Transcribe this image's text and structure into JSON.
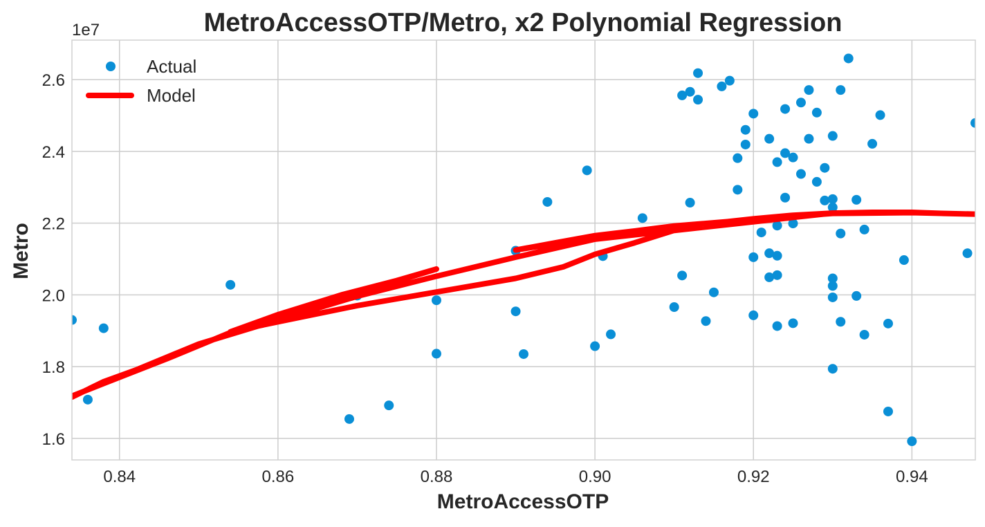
{
  "colors": {
    "actual": "#0a8fd6",
    "model": "#ff0000",
    "grid": "#cccccc",
    "spine": "#d0d0d0",
    "text": "#262626"
  },
  "chart_data": {
    "type": "scatter",
    "title": "MetroAccessOTP/Metro, x2 Polynomial Regression",
    "xlabel": "MetroAccessOTP",
    "ylabel": "Metro",
    "y_offset_label": "1e7",
    "xlim": [
      0.834,
      0.948
    ],
    "ylim": [
      15400000,
      27100000
    ],
    "xticks": [
      0.84,
      0.86,
      0.88,
      0.9,
      0.92,
      0.94
    ],
    "xtick_labels": [
      "0.84",
      "0.86",
      "0.88",
      "0.90",
      "0.92",
      "0.94"
    ],
    "yticks": [
      16000000,
      18000000,
      20000000,
      22000000,
      24000000,
      26000000
    ],
    "ytick_labels": [
      "1.6",
      "1.8",
      "2.0",
      "2.2",
      "2.4",
      "2.6"
    ],
    "grid": true,
    "legend_position": "top-left",
    "legend": [
      "Actual",
      "Model"
    ],
    "series": [
      {
        "name": "Actual",
        "kind": "scatter",
        "points": [
          [
            0.834,
            19300000
          ],
          [
            0.836,
            17080000
          ],
          [
            0.838,
            19070000
          ],
          [
            0.854,
            20280000
          ],
          [
            0.869,
            16540000
          ],
          [
            0.87,
            19980000
          ],
          [
            0.874,
            16920000
          ],
          [
            0.88,
            19850000
          ],
          [
            0.88,
            18360000
          ],
          [
            0.89,
            21230000
          ],
          [
            0.89,
            19540000
          ],
          [
            0.891,
            18350000
          ],
          [
            0.894,
            22590000
          ],
          [
            0.899,
            23470000
          ],
          [
            0.9,
            18570000
          ],
          [
            0.901,
            21080000
          ],
          [
            0.902,
            18900000
          ],
          [
            0.906,
            22140000
          ],
          [
            0.91,
            19660000
          ],
          [
            0.911,
            25560000
          ],
          [
            0.911,
            20540000
          ],
          [
            0.912,
            25660000
          ],
          [
            0.912,
            22570000
          ],
          [
            0.913,
            26180000
          ],
          [
            0.913,
            25440000
          ],
          [
            0.914,
            19270000
          ],
          [
            0.915,
            20070000
          ],
          [
            0.916,
            25810000
          ],
          [
            0.917,
            25970000
          ],
          [
            0.918,
            23810000
          ],
          [
            0.918,
            22930000
          ],
          [
            0.919,
            24600000
          ],
          [
            0.919,
            24190000
          ],
          [
            0.92,
            25050000
          ],
          [
            0.92,
            21050000
          ],
          [
            0.92,
            19430000
          ],
          [
            0.921,
            21740000
          ],
          [
            0.922,
            24350000
          ],
          [
            0.922,
            21160000
          ],
          [
            0.922,
            20490000
          ],
          [
            0.923,
            23700000
          ],
          [
            0.923,
            21930000
          ],
          [
            0.923,
            21090000
          ],
          [
            0.923,
            20550000
          ],
          [
            0.923,
            19130000
          ],
          [
            0.924,
            25180000
          ],
          [
            0.924,
            23950000
          ],
          [
            0.924,
            22710000
          ],
          [
            0.925,
            23830000
          ],
          [
            0.925,
            21990000
          ],
          [
            0.925,
            19210000
          ],
          [
            0.926,
            25360000
          ],
          [
            0.926,
            23370000
          ],
          [
            0.927,
            25710000
          ],
          [
            0.927,
            24350000
          ],
          [
            0.928,
            25080000
          ],
          [
            0.928,
            23150000
          ],
          [
            0.929,
            23540000
          ],
          [
            0.929,
            22630000
          ],
          [
            0.93,
            24430000
          ],
          [
            0.93,
            22670000
          ],
          [
            0.93,
            22440000
          ],
          [
            0.93,
            20460000
          ],
          [
            0.93,
            20250000
          ],
          [
            0.93,
            19930000
          ],
          [
            0.93,
            17940000
          ],
          [
            0.931,
            25710000
          ],
          [
            0.931,
            21710000
          ],
          [
            0.931,
            19250000
          ],
          [
            0.932,
            26590000
          ],
          [
            0.933,
            22650000
          ],
          [
            0.933,
            19970000
          ],
          [
            0.934,
            21820000
          ],
          [
            0.934,
            18890000
          ],
          [
            0.935,
            24210000
          ],
          [
            0.936,
            25010000
          ],
          [
            0.937,
            19200000
          ],
          [
            0.937,
            16750000
          ],
          [
            0.939,
            20970000
          ],
          [
            0.94,
            15920000
          ],
          [
            0.947,
            21160000
          ],
          [
            0.948,
            24790000
          ]
        ]
      },
      {
        "name": "Model",
        "kind": "line",
        "points": [
          [
            0.834,
            17180000
          ],
          [
            0.838,
            17530000
          ],
          [
            0.846,
            18220000
          ],
          [
            0.854,
            18950000
          ],
          [
            0.862,
            19550000
          ],
          [
            0.87,
            20100000
          ],
          [
            0.876,
            20450000
          ],
          [
            0.88,
            20720000
          ],
          [
            0.875,
            20400000
          ],
          [
            0.868,
            20000000
          ],
          [
            0.86,
            19450000
          ],
          [
            0.854,
            18970000
          ],
          [
            0.86,
            19250000
          ],
          [
            0.87,
            19700000
          ],
          [
            0.88,
            20080000
          ],
          [
            0.89,
            20460000
          ],
          [
            0.896,
            20780000
          ],
          [
            0.9,
            21130000
          ],
          [
            0.905,
            21450000
          ],
          [
            0.91,
            21800000
          ],
          [
            0.915,
            22000000
          ],
          [
            0.92,
            22120000
          ],
          [
            0.925,
            22220000
          ],
          [
            0.93,
            22280000
          ],
          [
            0.935,
            22300000
          ],
          [
            0.94,
            22300000
          ],
          [
            0.944,
            22270000
          ],
          [
            0.948,
            22250000
          ],
          [
            0.94,
            22290000
          ],
          [
            0.93,
            22270000
          ],
          [
            0.92,
            22110000
          ],
          [
            0.91,
            21880000
          ],
          [
            0.9,
            21600000
          ],
          [
            0.89,
            21250000
          ],
          [
            0.895,
            21450000
          ],
          [
            0.9,
            21650000
          ],
          [
            0.905,
            21780000
          ],
          [
            0.91,
            21920000
          ],
          [
            0.92,
            22100000
          ],
          [
            0.93,
            22280000
          ],
          [
            0.9,
            21550000
          ],
          [
            0.89,
            21050000
          ],
          [
            0.88,
            20520000
          ],
          [
            0.87,
            19960000
          ],
          [
            0.86,
            19300000
          ],
          [
            0.85,
            18630000
          ],
          [
            0.842,
            17900000
          ],
          [
            0.838,
            17580000
          ],
          [
            0.834,
            17150000
          ]
        ]
      }
    ]
  }
}
